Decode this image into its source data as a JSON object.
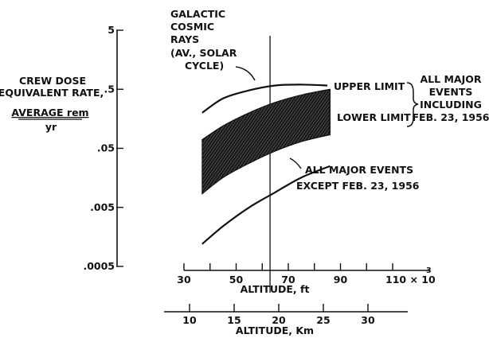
{
  "chart_data": {
    "type": "area",
    "y_scale": "log",
    "ylim": [
      0.0005,
      5
    ],
    "x_unit_note": "× 10^3",
    "y_axis": {
      "ticks": [
        "5",
        ".5",
        ".05",
        ".005",
        ".0005"
      ],
      "tick_values": [
        5,
        0.5,
        0.05,
        0.005,
        0.0005
      ],
      "label_lines": [
        "CREW DOSE",
        "EQUIVALENT RATE,"
      ],
      "unit_numerator": "AVERAGE rem",
      "unit_denominator": "yr"
    },
    "x_axis_ft": {
      "label": "ALTITUDE, ft",
      "xlim": [
        30,
        110
      ],
      "ticks": [
        "30",
        "50",
        "70",
        "90",
        "110 × 10"
      ],
      "tick_values": [
        30,
        50,
        70,
        90,
        110
      ],
      "exponent": "3"
    },
    "x_axis_km": {
      "label": "ALTITUDE, Km",
      "ticks": [
        "10",
        "15",
        "20",
        "25",
        "30"
      ],
      "tick_values": [
        10,
        15,
        20,
        25,
        30
      ]
    },
    "vertical_reference_ft": 63,
    "series": [
      {
        "name": "GALACTIC COSMIC RAYS (AV., SOLAR CYCLE)",
        "x": [
          37,
          45,
          55,
          65,
          75,
          85
        ],
        "y": [
          0.2,
          0.35,
          0.48,
          0.58,
          0.6,
          0.58
        ]
      },
      {
        "name": "UPPER LIMIT",
        "x": [
          37,
          45,
          55,
          65,
          75,
          86
        ],
        "y": [
          0.07,
          0.12,
          0.2,
          0.3,
          0.4,
          0.5
        ]
      },
      {
        "name": "LOWER LIMIT",
        "x": [
          37,
          45,
          55,
          65,
          75,
          86
        ],
        "y": [
          0.0085,
          0.016,
          0.028,
          0.045,
          0.065,
          0.085
        ]
      },
      {
        "name": "ALL MAJOR EVENTS EXCEPT FEB. 23, 1956",
        "x": [
          37,
          45,
          55,
          65,
          75,
          86
        ],
        "y": [
          0.0012,
          0.0024,
          0.005,
          0.009,
          0.016,
          0.025
        ]
      }
    ],
    "annotations": {
      "galactic_lines": [
        "GALACTIC",
        "COSMIC",
        "RAYS",
        "(AV., SOLAR",
        "CYCLE)"
      ],
      "upper_limit": "UPPER LIMIT",
      "lower_limit": "LOWER LIMIT",
      "all_major_including_lines": [
        "ALL MAJOR",
        "EVENTS",
        "INCLUDING",
        "FEB. 23, 1956"
      ],
      "all_major_except_lines": [
        "ALL MAJOR EVENTS",
        "EXCEPT FEB. 23, 1956"
      ]
    }
  }
}
